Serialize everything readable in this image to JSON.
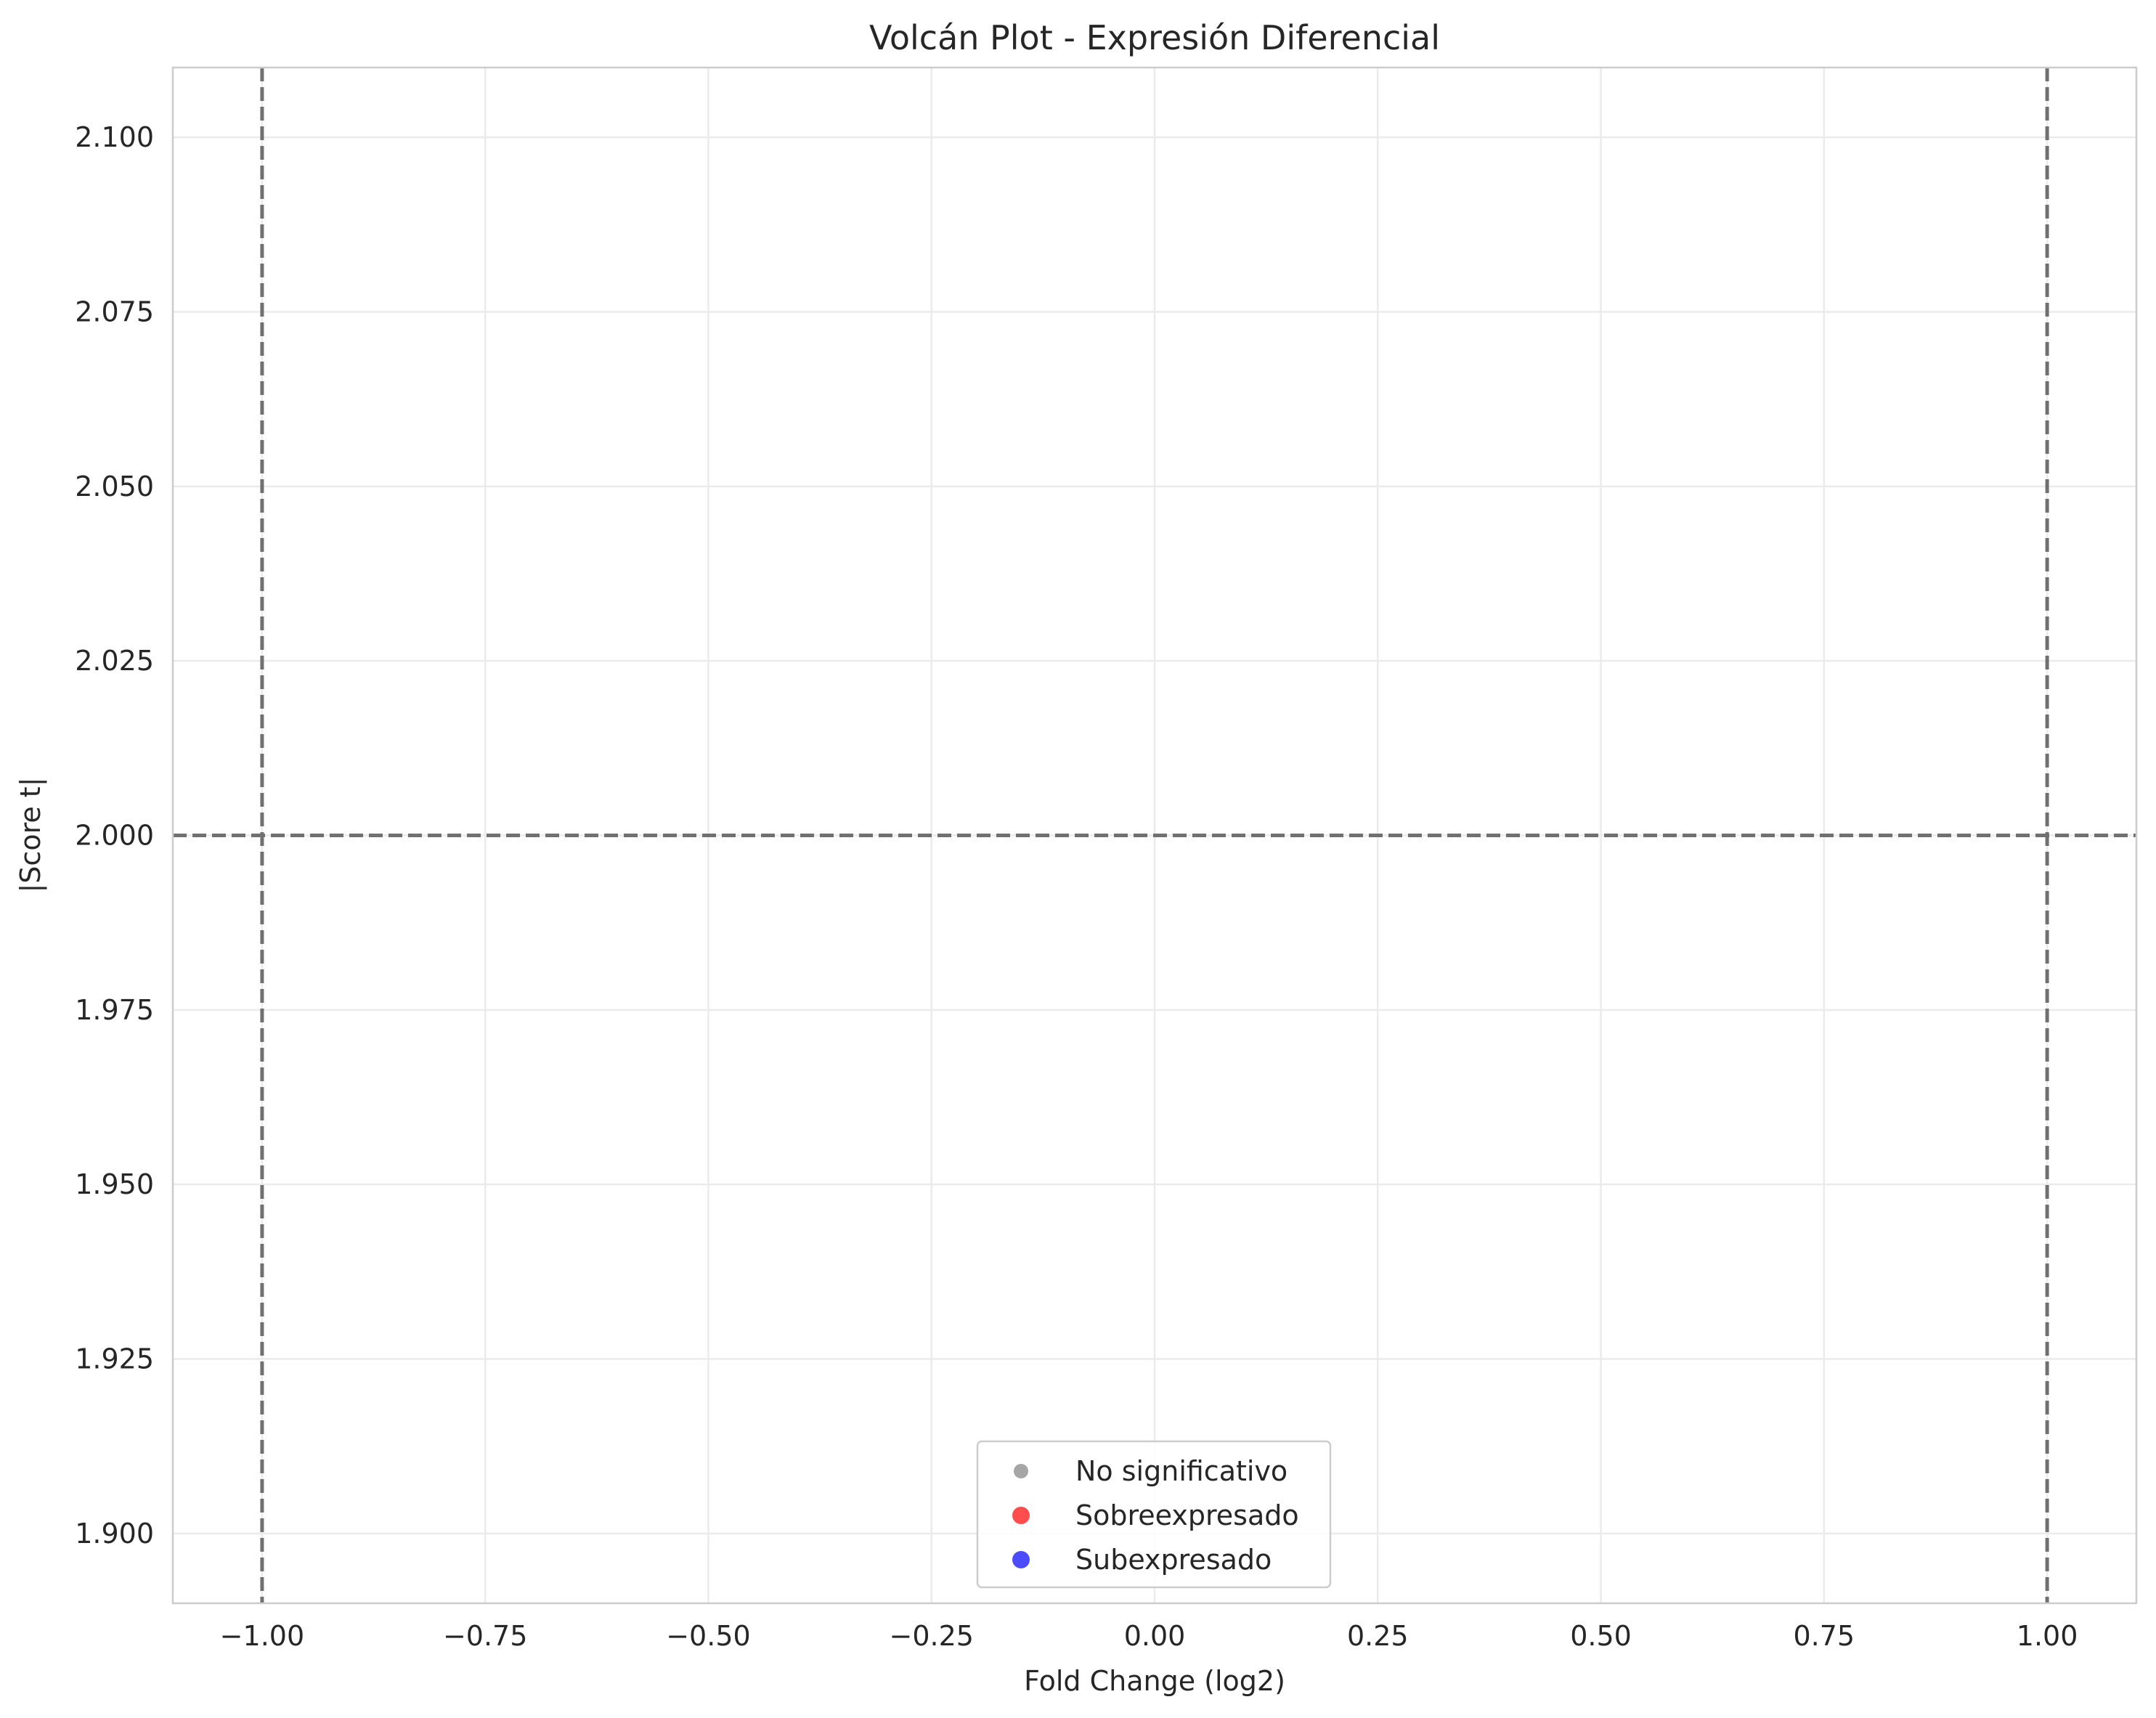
{
  "chart_data": {
    "type": "scatter",
    "title": "Volcán Plot - Expresión Diferencial",
    "xlabel": "Fold Change (log2)",
    "ylabel": "|Score t|",
    "xlim": [
      -1.1,
      1.1
    ],
    "ylim": [
      1.89,
      2.11
    ],
    "x_ticks": [
      -1.0,
      -0.75,
      -0.5,
      -0.25,
      0.0,
      0.25,
      0.5,
      0.75,
      1.0
    ],
    "x_tick_labels": [
      "−1.00",
      "−0.75",
      "−0.50",
      "−0.25",
      "0.00",
      "0.25",
      "0.50",
      "0.75",
      "1.00"
    ],
    "y_ticks": [
      1.9,
      1.925,
      1.95,
      1.975,
      2.0,
      2.025,
      2.05,
      2.075,
      2.1
    ],
    "y_tick_labels": [
      "1.900",
      "1.925",
      "1.950",
      "1.975",
      "2.000",
      "2.025",
      "2.050",
      "2.075",
      "2.100"
    ],
    "grid": true,
    "legend_position": "lower center",
    "series": [
      {
        "name": "No significativo",
        "color": "#808080",
        "points": []
      },
      {
        "name": "Sobreexpresado",
        "color": "#ff0000",
        "points": []
      },
      {
        "name": "Subexpresado",
        "color": "#0000ff",
        "points": []
      }
    ],
    "reference_lines": [
      {
        "orientation": "vertical",
        "value": -1.0,
        "style": "dashed",
        "color": "#707070"
      },
      {
        "orientation": "vertical",
        "value": 1.0,
        "style": "dashed",
        "color": "#707070"
      },
      {
        "orientation": "horizontal",
        "value": 2.0,
        "style": "dashed",
        "color": "#707070"
      }
    ]
  }
}
